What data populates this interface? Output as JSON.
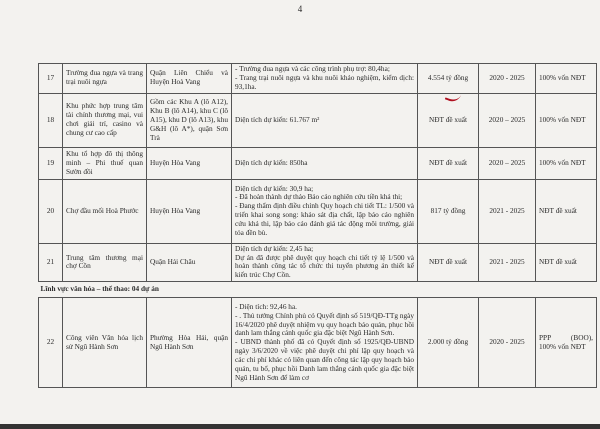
{
  "page_number": "4",
  "rows": [
    {
      "no": "17",
      "name": "Trường đua ngựa và trang trại nuôi ngựa",
      "location": "Quận Liên Chiểu và Huyện Hoà Vang",
      "description": [
        "- Trường đua ngựa và các công trình phụ trợ: 80,4ha;",
        "- Trang trại nuôi ngựa và khu nuôi khảo nghiệm, kiểm dịch: 93,1ha."
      ],
      "cost": "4.554 tỷ đồng",
      "period": "2020 - 2025",
      "capital": "100% vốn NĐT"
    },
    {
      "no": "18",
      "name": "Khu phức hợp trung tâm tài chính thương mại, vui chơi giải trí, casino và chung cư cao cấp",
      "location": "Gồm các Khu A (lô A12), Khu B (lô A14), khu C (lô A15), khu D (lô A13), khu G&H (lô A*), quận Sơn Trà",
      "description": [
        "Diện tích dự kiến: 61.767 m²"
      ],
      "cost": "NĐT đề xuất",
      "period": "2020 – 2025",
      "capital": "100% vốn NĐT"
    },
    {
      "no": "19",
      "name": "Khu tổ hợp đô thị thông minh – Phi thuế quan Sườn đồi",
      "location": "Huyện Hòa Vang",
      "description": [
        "Diện tích dự kiến: 850ha"
      ],
      "cost": "NĐT đề xuất",
      "period": "2020 – 2025",
      "capital": "100% vốn NĐT"
    },
    {
      "no": "20",
      "name": "Chợ đầu mối Hoà Phước",
      "location": "Huyện Hòa Vang",
      "description": [
        "Diện tích dự kiến: 30,9 ha;",
        "- Đã hoàn thành dự thảo Báo cáo nghiên cứu tiền khả thi;",
        "- Đang thẩm định điều chỉnh Quy hoạch chi tiết TL: 1/500 và triển khai song song: khảo sát địa chất, lập báo cáo nghiên cứu khả thi, lập báo cáo đánh giá tác động môi trường, giải tỏa đền bù."
      ],
      "cost": "817 tỷ đồng",
      "period": "2021 - 2025",
      "capital": "NĐT đề xuất"
    },
    {
      "no": "21",
      "name": "Trung tâm thương mại chợ Cồn",
      "location": "Quận Hải Châu",
      "description": [
        "Diện tích dự kiến: 2,45 ha;",
        "Dự án đã được phê duyệt quy hoạch chi tiết tỷ lệ 1/500 và hoàn thành công tác tổ chức thi tuyển phương án thiết kế kiến trúc Chợ Cồn."
      ],
      "cost": "NĐT đề xuất",
      "period": "2021 - 2025",
      "capital": "NĐT đề xuất"
    }
  ],
  "section": "Lĩnh vực văn hóa – thể thao: 04 dự án",
  "row22": {
    "no": "22",
    "name": "Công viên Văn hóa lịch sử Ngũ Hành Sơn",
    "location": "Phường Hòa Hải, quận Ngũ Hành Sơn",
    "description": [
      "- Diện tích: 92,46 ha.",
      "- . Thủ tướng Chính phủ có Quyết định số 519/QĐ-TTg ngày 16/4/2020 phê duyệt nhiệm vụ quy hoạch bảo quản, phục hồi danh lam thắng cảnh quốc gia đặc biệt Ngũ Hành Sơn.",
      "- UBND thành phố đã có Quyết định số 1925/QĐ-UBND ngày 3/6/2020 về việc phê duyệt chi phí lập quy hoạch và các chi phí khác có liên quan đến công tác lập quy hoạch bảo quản, tu bổ, phục hồi Danh lam thắng cảnh quốc gia đặc biệt Ngũ Hành Sơn để làm cơ"
    ],
    "cost": "2.000 tỷ đồng",
    "period": "2020 - 2025",
    "capital": "PPP (BOO), 100% vốn NĐT"
  }
}
